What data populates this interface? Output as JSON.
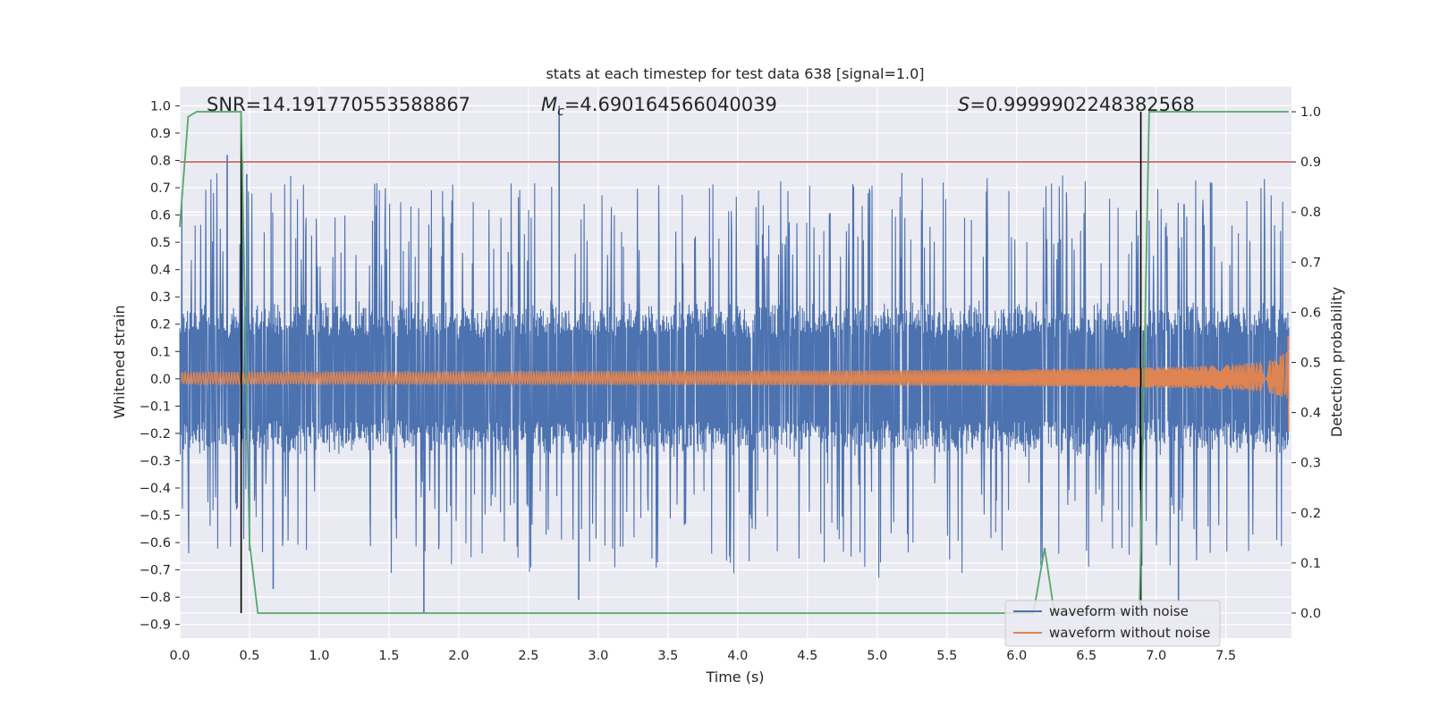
{
  "chart_data": {
    "type": "line",
    "title": "stats at each timestep for test data 638 [signal=1.0]",
    "xlabel": "Time (s)",
    "ylabel": "Whitened strain",
    "ylabel_right": "Detection probability",
    "xlim": [
      0.0,
      7.97
    ],
    "ylim": [
      -0.95,
      1.07
    ],
    "ylim_right": [
      -0.05,
      1.05
    ],
    "x_ticks": [
      "0.0",
      "0.5",
      "1.0",
      "1.5",
      "2.0",
      "2.5",
      "3.0",
      "3.5",
      "4.0",
      "4.5",
      "5.0",
      "5.5",
      "6.0",
      "6.5",
      "7.0",
      "7.5"
    ],
    "y_ticks": [
      "-0.9",
      "-0.8",
      "-0.7",
      "-0.6",
      "-0.5",
      "-0.4",
      "-0.3",
      "-0.2",
      "-0.1",
      "0.0",
      "0.1",
      "0.2",
      "0.3",
      "0.4",
      "0.5",
      "0.6",
      "0.7",
      "0.8",
      "0.9",
      "1.0"
    ],
    "y_ticks_right": [
      "0.0",
      "0.1",
      "0.2",
      "0.3",
      "0.4",
      "0.5",
      "0.6",
      "0.7",
      "0.8",
      "0.9",
      "1.0"
    ],
    "grid": true,
    "background": "#eaeaf2",
    "annotations": {
      "snr": "SNR=14.191770553588867",
      "mc": "=4.690164566040039",
      "mc_symbol": "M",
      "mc_subscript": "c",
      "s": "=0.9999902248382568",
      "s_symbol": "S"
    },
    "legend": {
      "placement": "bottom-right",
      "entries": [
        "waveform with noise",
        "waveform without noise"
      ]
    },
    "series": [
      {
        "name": "waveform with noise",
        "color": "#4c72b0",
        "style": "noise",
        "envelope_low": [
          -0.3,
          0.3
        ],
        "peaks": [
          {
            "x": 0.34,
            "y": 0.82
          },
          {
            "x": 0.45,
            "y": 0.8
          },
          {
            "x": 0.48,
            "y": 0.75
          },
          {
            "x": 2.72,
            "y": 1.0
          },
          {
            "x": 0.5,
            "y": -0.63
          },
          {
            "x": 0.67,
            "y": -0.77
          },
          {
            "x": 1.75,
            "y": -0.86
          },
          {
            "x": 2.86,
            "y": -0.81
          },
          {
            "x": 7.16,
            "y": -0.82
          },
          {
            "x": 7.39,
            "y": 0.72
          },
          {
            "x": 7.2,
            "y": 0.64
          }
        ]
      },
      {
        "name": "waveform without noise",
        "color": "#dd8452",
        "style": "chirp",
        "amplitude_start": 0.025,
        "amplitude_end_upper": 0.35,
        "amplitude_end_lower": -0.27,
        "merger_time": 7.95
      },
      {
        "name": "detection probability",
        "color": "#55a868",
        "axis": "right",
        "x": [
          0.0,
          0.06,
          0.12,
          0.44,
          0.5,
          0.56,
          6.12,
          6.2,
          6.27,
          6.88,
          6.95,
          7.95
        ],
        "y": [
          0.77,
          0.99,
          1.0,
          1.0,
          0.14,
          0.0,
          0.0,
          0.13,
          0.0,
          0.0,
          1.0,
          1.0
        ]
      }
    ],
    "threshold": {
      "color": "#c44e52",
      "y_right": 0.9
    },
    "vlines": [
      {
        "x": 0.44,
        "color": "#000000"
      },
      {
        "x": 6.89,
        "color": "#000000"
      }
    ]
  }
}
